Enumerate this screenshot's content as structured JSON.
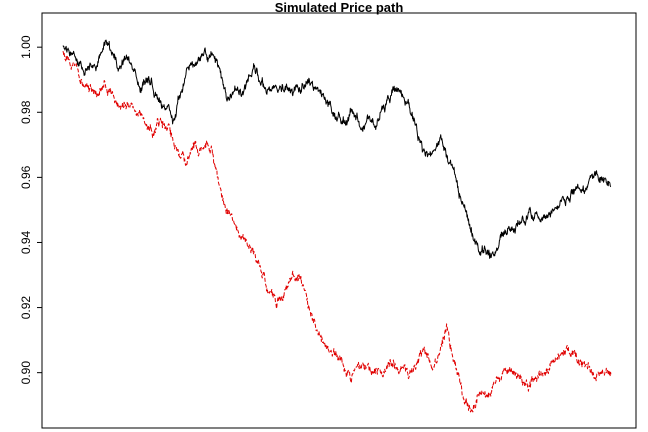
{
  "chart_data": {
    "type": "line",
    "title": "Simulated Price path",
    "xlabel": "",
    "ylabel": "",
    "ylim": [
      0.883,
      1.0105
    ],
    "xlim": [
      0,
      1000
    ],
    "y_ticks": [
      "0.90",
      "0.92",
      "0.94",
      "0.96",
      "0.98",
      "1.00"
    ],
    "grid": false,
    "legend": "none",
    "series": [
      {
        "color": "#000000",
        "line_style": "solid",
        "anchors": [
          [
            0,
            1.0
          ],
          [
            10,
            0.999
          ],
          [
            20,
            0.996
          ],
          [
            40,
            0.992
          ],
          [
            60,
            0.995
          ],
          [
            80,
            1.002
          ],
          [
            100,
            0.994
          ],
          [
            120,
            0.997
          ],
          [
            140,
            0.988
          ],
          [
            160,
            0.99
          ],
          [
            180,
            0.982
          ],
          [
            200,
            0.978
          ],
          [
            215,
            0.986
          ],
          [
            230,
            0.994
          ],
          [
            250,
            0.996
          ],
          [
            270,
            0.998
          ],
          [
            285,
            0.992
          ],
          [
            300,
            0.983
          ],
          [
            315,
            0.988
          ],
          [
            330,
            0.987
          ],
          [
            350,
            0.993
          ],
          [
            370,
            0.988
          ],
          [
            390,
            0.987
          ],
          [
            410,
            0.988
          ],
          [
            430,
            0.986
          ],
          [
            450,
            0.988
          ],
          [
            470,
            0.985
          ],
          [
            490,
            0.98
          ],
          [
            510,
            0.977
          ],
          [
            530,
            0.98
          ],
          [
            550,
            0.976
          ],
          [
            570,
            0.977
          ],
          [
            590,
            0.982
          ],
          [
            610,
            0.988
          ],
          [
            630,
            0.982
          ],
          [
            645,
            0.975
          ],
          [
            660,
            0.966
          ],
          [
            675,
            0.969
          ],
          [
            690,
            0.971
          ],
          [
            700,
            0.968
          ],
          [
            715,
            0.96
          ],
          [
            730,
            0.952
          ],
          [
            745,
            0.944
          ],
          [
            760,
            0.938
          ],
          [
            775,
            0.936
          ],
          [
            790,
            0.937
          ],
          [
            810,
            0.944
          ],
          [
            830,
            0.946
          ],
          [
            850,
            0.949
          ],
          [
            870,
            0.948
          ],
          [
            890,
            0.951
          ],
          [
            910,
            0.953
          ],
          [
            930,
            0.955
          ],
          [
            950,
            0.956
          ],
          [
            970,
            0.961
          ],
          [
            985,
            0.959
          ],
          [
            1000,
            0.957
          ]
        ]
      },
      {
        "color": "#e00000",
        "line_style": "dashed",
        "anchors": [
          [
            0,
            0.999
          ],
          [
            15,
            0.995
          ],
          [
            30,
            0.992
          ],
          [
            45,
            0.987
          ],
          [
            60,
            0.985
          ],
          [
            75,
            0.989
          ],
          [
            90,
            0.986
          ],
          [
            105,
            0.982
          ],
          [
            120,
            0.984
          ],
          [
            135,
            0.98
          ],
          [
            150,
            0.977
          ],
          [
            165,
            0.973
          ],
          [
            180,
            0.978
          ],
          [
            195,
            0.975
          ],
          [
            210,
            0.966
          ],
          [
            225,
            0.965
          ],
          [
            240,
            0.969
          ],
          [
            255,
            0.97
          ],
          [
            270,
            0.968
          ],
          [
            285,
            0.958
          ],
          [
            300,
            0.95
          ],
          [
            315,
            0.945
          ],
          [
            330,
            0.942
          ],
          [
            345,
            0.938
          ],
          [
            360,
            0.932
          ],
          [
            375,
            0.925
          ],
          [
            390,
            0.922
          ],
          [
            405,
            0.925
          ],
          [
            420,
            0.93
          ],
          [
            435,
            0.927
          ],
          [
            450,
            0.92
          ],
          [
            465,
            0.913
          ],
          [
            480,
            0.908
          ],
          [
            495,
            0.905
          ],
          [
            510,
            0.903
          ],
          [
            525,
            0.899
          ],
          [
            540,
            0.901
          ],
          [
            555,
            0.902
          ],
          [
            570,
            0.9
          ],
          [
            585,
            0.901
          ],
          [
            600,
            0.904
          ],
          [
            615,
            0.902
          ],
          [
            630,
            0.899
          ],
          [
            645,
            0.903
          ],
          [
            660,
            0.905
          ],
          [
            675,
            0.902
          ],
          [
            690,
            0.907
          ],
          [
            700,
            0.913
          ],
          [
            710,
            0.907
          ],
          [
            720,
            0.9
          ],
          [
            730,
            0.892
          ],
          [
            745,
            0.889
          ],
          [
            760,
            0.895
          ],
          [
            775,
            0.893
          ],
          [
            790,
            0.897
          ],
          [
            810,
            0.901
          ],
          [
            830,
            0.899
          ],
          [
            850,
            0.895
          ],
          [
            870,
            0.899
          ],
          [
            890,
            0.902
          ],
          [
            910,
            0.907
          ],
          [
            930,
            0.905
          ],
          [
            950,
            0.903
          ],
          [
            970,
            0.899
          ],
          [
            985,
            0.9
          ],
          [
            1000,
            0.901
          ]
        ]
      }
    ]
  }
}
